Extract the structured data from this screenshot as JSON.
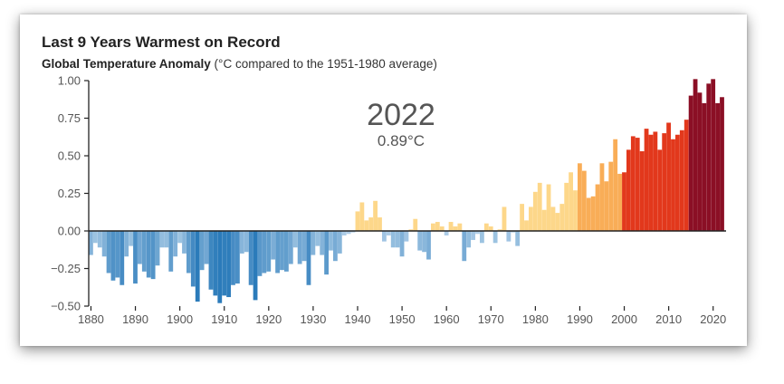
{
  "chart_data": {
    "type": "bar",
    "title": "Last 9 Years Warmest on Record",
    "subtitle_bold": "Global Temperature Anomaly",
    "subtitle_rest": " (°C compared to the 1951-1980 average)",
    "highlight": {
      "year": "2022",
      "value": "0.89°C"
    },
    "ylim": [
      -0.5,
      1.0
    ],
    "xlim": [
      1880,
      2022
    ],
    "yticks": [
      "1.00",
      "0.75",
      "0.50",
      "0.25",
      "0.00",
      "−0.25",
      "−0.50"
    ],
    "ytick_values": [
      1.0,
      0.75,
      0.5,
      0.25,
      0.0,
      -0.25,
      -0.5
    ],
    "xticks": [
      "1880",
      "1890",
      "1900",
      "1910",
      "1920",
      "1930",
      "1940",
      "1950",
      "1960",
      "1970",
      "1980",
      "1990",
      "2000",
      "2010",
      "2020"
    ],
    "xtick_values": [
      1880,
      1890,
      1900,
      1910,
      1920,
      1930,
      1940,
      1950,
      1960,
      1970,
      1980,
      1990,
      2000,
      2010,
      2020
    ],
    "grid": false,
    "years": [
      1880,
      1881,
      1882,
      1883,
      1884,
      1885,
      1886,
      1887,
      1888,
      1889,
      1890,
      1891,
      1892,
      1893,
      1894,
      1895,
      1896,
      1897,
      1898,
      1899,
      1900,
      1901,
      1902,
      1903,
      1904,
      1905,
      1906,
      1907,
      1908,
      1909,
      1910,
      1911,
      1912,
      1913,
      1914,
      1915,
      1916,
      1917,
      1918,
      1919,
      1920,
      1921,
      1922,
      1923,
      1924,
      1925,
      1926,
      1927,
      1928,
      1929,
      1930,
      1931,
      1932,
      1933,
      1934,
      1935,
      1936,
      1937,
      1938,
      1939,
      1940,
      1941,
      1942,
      1943,
      1944,
      1945,
      1946,
      1947,
      1948,
      1949,
      1950,
      1951,
      1952,
      1953,
      1954,
      1955,
      1956,
      1957,
      1958,
      1959,
      1960,
      1961,
      1962,
      1963,
      1964,
      1965,
      1966,
      1967,
      1968,
      1969,
      1970,
      1971,
      1972,
      1973,
      1974,
      1975,
      1976,
      1977,
      1978,
      1979,
      1980,
      1981,
      1982,
      1983,
      1984,
      1985,
      1986,
      1987,
      1988,
      1989,
      1990,
      1991,
      1992,
      1993,
      1994,
      1995,
      1996,
      1997,
      1998,
      1999,
      2000,
      2001,
      2002,
      2003,
      2004,
      2005,
      2006,
      2007,
      2008,
      2009,
      2010,
      2011,
      2012,
      2013,
      2014,
      2015,
      2016,
      2017,
      2018,
      2019,
      2020,
      2021,
      2022
    ],
    "values": [
      -0.16,
      -0.08,
      -0.11,
      -0.17,
      -0.28,
      -0.33,
      -0.31,
      -0.36,
      -0.17,
      -0.1,
      -0.35,
      -0.22,
      -0.27,
      -0.31,
      -0.32,
      -0.23,
      -0.11,
      -0.11,
      -0.27,
      -0.17,
      -0.08,
      -0.15,
      -0.28,
      -0.37,
      -0.47,
      -0.26,
      -0.22,
      -0.39,
      -0.43,
      -0.48,
      -0.43,
      -0.44,
      -0.36,
      -0.35,
      -0.15,
      -0.14,
      -0.36,
      -0.46,
      -0.3,
      -0.28,
      -0.27,
      -0.19,
      -0.28,
      -0.26,
      -0.27,
      -0.22,
      -0.11,
      -0.22,
      -0.2,
      -0.36,
      -0.16,
      -0.1,
      -0.16,
      -0.29,
      -0.13,
      -0.2,
      -0.15,
      -0.03,
      -0.02,
      -0.01,
      0.13,
      0.19,
      0.07,
      0.09,
      0.2,
      0.09,
      -0.07,
      -0.03,
      -0.11,
      -0.11,
      -0.17,
      -0.07,
      0.01,
      0.08,
      -0.13,
      -0.14,
      -0.19,
      0.05,
      0.06,
      0.03,
      -0.03,
      0.06,
      0.03,
      0.05,
      -0.2,
      -0.11,
      -0.06,
      -0.02,
      -0.08,
      0.05,
      0.03,
      -0.08,
      0.01,
      0.16,
      -0.07,
      -0.01,
      -0.1,
      0.18,
      0.07,
      0.16,
      0.26,
      0.32,
      0.14,
      0.31,
      0.16,
      0.12,
      0.18,
      0.32,
      0.39,
      0.27,
      0.45,
      0.4,
      0.22,
      0.23,
      0.31,
      0.45,
      0.33,
      0.46,
      0.61,
      0.38,
      0.39,
      0.54,
      0.63,
      0.62,
      0.53,
      0.68,
      0.64,
      0.66,
      0.54,
      0.65,
      0.72,
      0.61,
      0.64,
      0.67,
      0.74,
      0.9,
      1.01,
      0.92,
      0.85,
      0.98,
      1.01,
      0.85,
      0.89
    ],
    "colors": {
      "cold_strong": "#2b7bba",
      "cold_light": "#b5d2ea",
      "warm_light": "#fdd78a",
      "warm_mid": "#f58a2e",
      "warm_red": "#e2381c",
      "record_dark": "#8b0f25",
      "axis": "#222222"
    }
  }
}
